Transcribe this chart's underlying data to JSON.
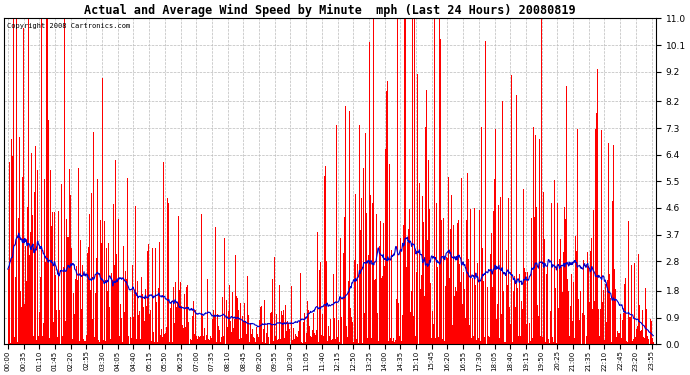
{
  "title": "Actual and Average Wind Speed by Minute  mph (Last 24 Hours) 20080819",
  "copyright_text": "Copyright 2008 Cartronics.com",
  "background_color": "#ffffff",
  "plot_bg_color": "#ffffff",
  "grid_color": "#bbbbbb",
  "bar_color": "#ff0000",
  "line_color": "#0000cc",
  "yticks": [
    0.0,
    0.9,
    1.8,
    2.8,
    3.7,
    4.6,
    5.5,
    6.4,
    7.3,
    8.2,
    9.2,
    10.1,
    11.0
  ],
  "ymax": 11.0,
  "ymin": 0.0,
  "n_minutes": 1440,
  "seed": 12345,
  "xtick_interval": 35,
  "figwidth": 6.9,
  "figheight": 3.75,
  "dpi": 100
}
